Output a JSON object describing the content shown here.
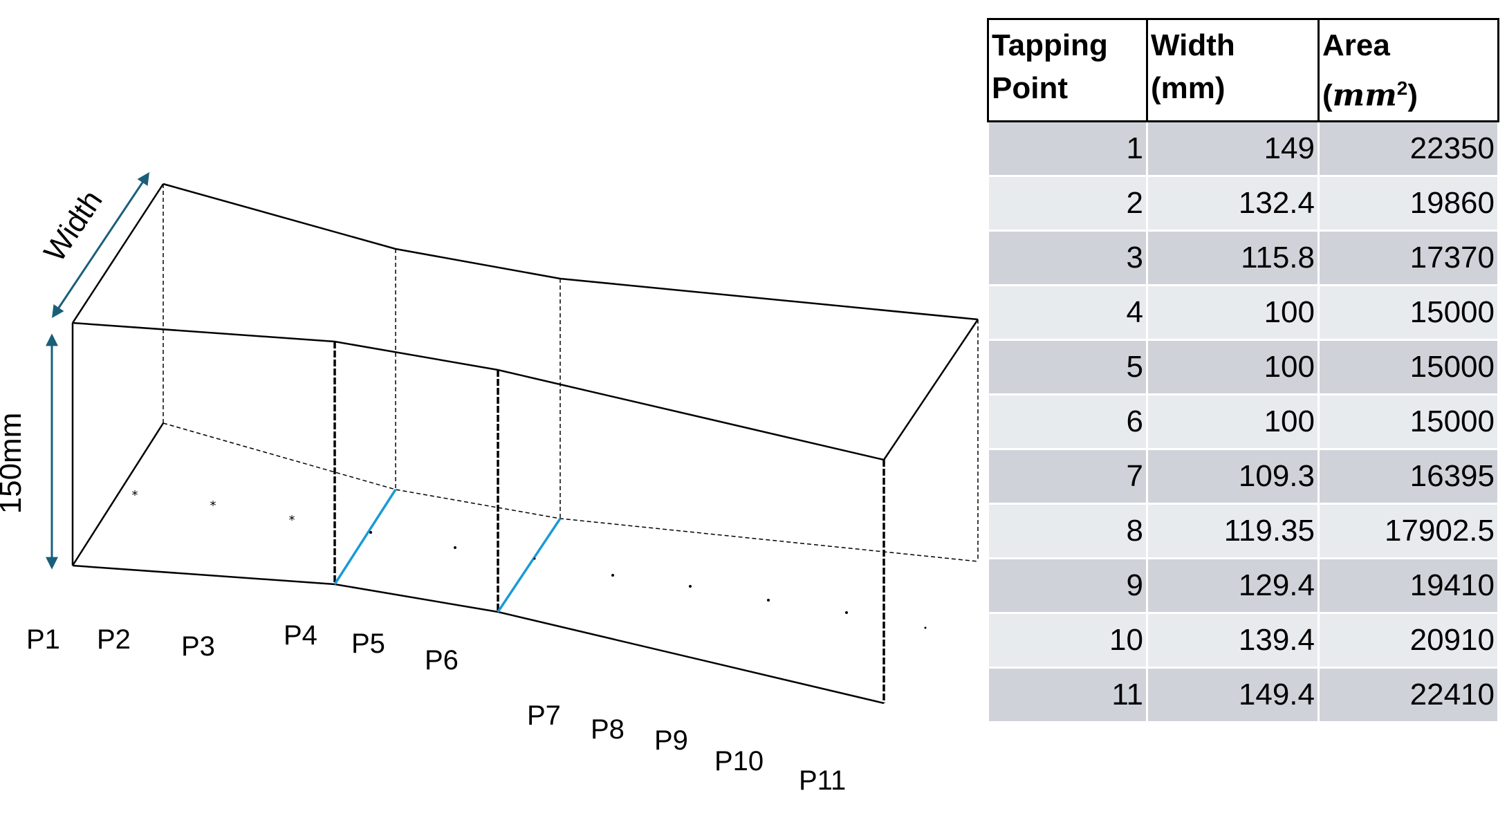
{
  "diagram": {
    "width_label": "Width",
    "height_label": "150mm",
    "point_labels": [
      "P1",
      "P2",
      "P3",
      "P4",
      "P5",
      "P6",
      "P7",
      "P8",
      "P9",
      "P10",
      "P11"
    ],
    "colors": {
      "dimension_arrow": "#1a5f7a",
      "highlight_line": "#1a9ad6",
      "outline": "#000000"
    }
  },
  "table": {
    "headers": [
      {
        "line1": "Tapping",
        "line2": "Point"
      },
      {
        "line1": "Width",
        "line2": "(mm)"
      },
      {
        "line1": "Area",
        "line2_prefix": "(",
        "math": "mm",
        "sup": "2",
        "line2_suffix": ")"
      }
    ],
    "rows": [
      {
        "point": "1",
        "width": "149",
        "area": "22350"
      },
      {
        "point": "2",
        "width": "132.4",
        "area": "19860"
      },
      {
        "point": "3",
        "width": "115.8",
        "area": "17370"
      },
      {
        "point": "4",
        "width": "100",
        "area": "15000"
      },
      {
        "point": "5",
        "width": "100",
        "area": "15000"
      },
      {
        "point": "6",
        "width": "100",
        "area": "15000"
      },
      {
        "point": "7",
        "width": "109.3",
        "area": "16395"
      },
      {
        "point": "8",
        "width": "119.35",
        "area": "17902.5"
      },
      {
        "point": "9",
        "width": "129.4",
        "area": "19410"
      },
      {
        "point": "10",
        "width": "139.4",
        "area": "20910"
      },
      {
        "point": "11",
        "width": "149.4",
        "area": "22410"
      }
    ],
    "row_colors": [
      "#cfd3d9",
      "#e8ebee"
    ]
  }
}
